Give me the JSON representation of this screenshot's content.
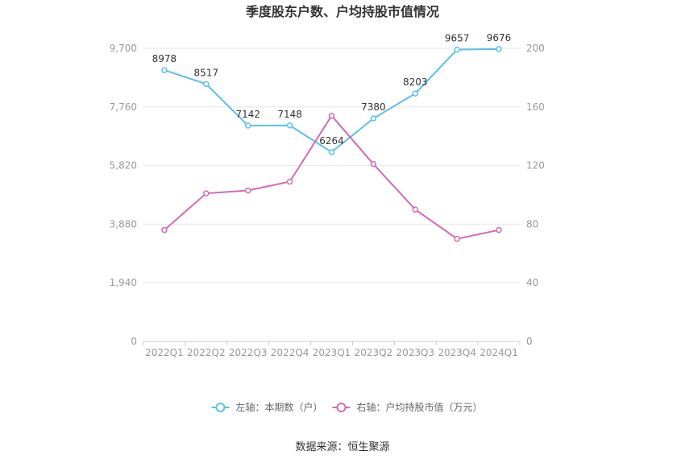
{
  "chart_data": {
    "type": "line",
    "title": "季度股东户数、户均持股市值情况",
    "categories": [
      "2022Q1",
      "2022Q2",
      "2022Q3",
      "2022Q4",
      "2023Q1",
      "2023Q2",
      "2023Q3",
      "2023Q4",
      "2024Q1"
    ],
    "series": [
      {
        "name": "左轴：本期数（户）",
        "axis": "left",
        "color": "#5bc0eb",
        "values": [
          8978,
          8517,
          7142,
          7148,
          6264,
          7380,
          8203,
          9657,
          9676
        ],
        "labels": [
          "8978",
          "8517",
          "7142",
          "7148",
          "6264",
          "7380",
          "8203",
          "9657",
          "9676"
        ]
      },
      {
        "name": "右轴：户均持股市值（万元）",
        "axis": "right",
        "color": "#d36bb0",
        "values": [
          76,
          101,
          103,
          109,
          154,
          121,
          90,
          70,
          76
        ]
      }
    ],
    "left_axis": {
      "ylim": [
        0,
        9700
      ],
      "ticks": [
        "0",
        "1,940",
        "3,880",
        "5,820",
        "7,760",
        "9,700"
      ],
      "tick_values": [
        0,
        1940,
        3880,
        5820,
        7760,
        9700
      ]
    },
    "right_axis": {
      "ylim": [
        0,
        200
      ],
      "ticks": [
        "0",
        "40",
        "80",
        "120",
        "160",
        "200"
      ],
      "tick_values": [
        0,
        40,
        80,
        120,
        160,
        200
      ]
    },
    "grid": true,
    "legend_position": "bottom"
  },
  "source_text": "数据来源：恒生聚源"
}
